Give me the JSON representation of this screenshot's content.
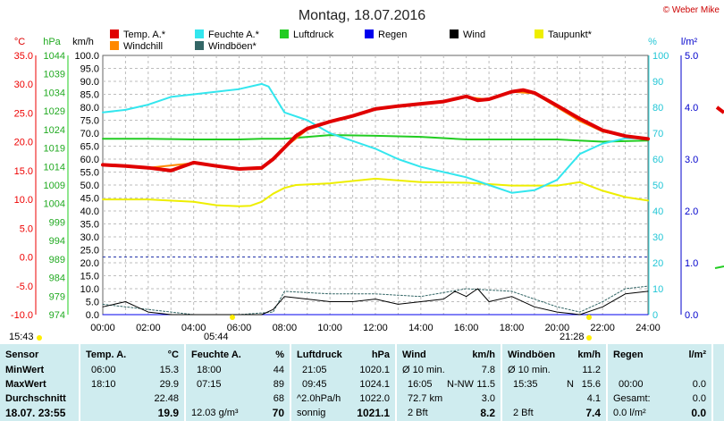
{
  "header": {
    "title": "Montag, 18.07.2016",
    "copyright": "© Weber Mike"
  },
  "axis_titles": {
    "temp": "°C",
    "press": "hPa",
    "wind": "km/h",
    "hum": "%",
    "rain": "l/m²"
  },
  "legend": [
    {
      "label": "Temp. A.*",
      "color": "#e00000"
    },
    {
      "label": "Feuchte A.*",
      "color": "#33e6ee"
    },
    {
      "label": "Luftdruck",
      "color": "#22cc22"
    },
    {
      "label": "Regen",
      "color": "#0000ee"
    },
    {
      "label": "Wind",
      "color": "#000000"
    },
    {
      "label": "Taupunkt*",
      "color": "#eeee00"
    },
    {
      "label": "Windchill",
      "color": "#ff8800"
    },
    {
      "label": "Windböen*",
      "color": "#336666"
    }
  ],
  "sun": {
    "rise": "05:44",
    "set": "21:28",
    "left_time": "15:43"
  },
  "chart_data": {
    "type": "line",
    "title": "Montag, 18.07.2016",
    "x_range": [
      "00:00",
      "24:00"
    ],
    "x_ticks": [
      "00:00",
      "02:00",
      "04:00",
      "06:00",
      "08:00",
      "10:00",
      "12:00",
      "14:00",
      "16:00",
      "18:00",
      "20:00",
      "22:00",
      "24:00"
    ],
    "axes": {
      "temp_c": {
        "range": [
          -10,
          35
        ],
        "ticks": [
          "35.0",
          "30.0",
          "25.0",
          "20.0",
          "15.0",
          "10.0",
          "5.0",
          "0.0",
          "-5.0",
          "-10.0"
        ],
        "color": "#ee0000"
      },
      "pressure_hpa": {
        "range": [
          974,
          1044
        ],
        "ticks": [
          "1044",
          "1039",
          "1034",
          "1029",
          "1024",
          "1019",
          "1014",
          "1009",
          "1004",
          "999",
          "994",
          "989",
          "984",
          "979",
          "974"
        ],
        "color": "#22aa22"
      },
      "wind_kmh": {
        "range": [
          0,
          100
        ],
        "ticks": [
          "100.0",
          "95.0",
          "90.0",
          "85.0",
          "80.0",
          "75.0",
          "70.0",
          "65.0",
          "60.0",
          "55.0",
          "50.0",
          "45.0",
          "40.0",
          "35.0",
          "30.0",
          "25.0",
          "20.0",
          "15.0",
          "10.0",
          "5.0",
          "0.0"
        ],
        "color": "#000000"
      },
      "humidity_pct": {
        "range": [
          0,
          100
        ],
        "ticks": [
          "100",
          "90",
          "80",
          "70",
          "60",
          "50",
          "40",
          "30",
          "20",
          "10",
          "0"
        ],
        "color": "#22c6d6"
      },
      "rain_lm2": {
        "range": [
          0,
          5
        ],
        "ticks": [
          "5.0",
          "4.0",
          "3.0",
          "2.0",
          "1.0",
          "0.0"
        ],
        "color": "#0000cc"
      }
    },
    "series": [
      {
        "name": "Temp. A.*",
        "axis": "temp_c",
        "color": "#e00000",
        "width": 4,
        "x": [
          0,
          1,
          2,
          3,
          4,
          5,
          6,
          7,
          7.5,
          8,
          8.5,
          9,
          10,
          11,
          12,
          13,
          14,
          15,
          16,
          16.5,
          17,
          18,
          18.5,
          19,
          20,
          21,
          22,
          23,
          24
        ],
        "y": [
          16.0,
          15.8,
          15.5,
          15.0,
          16.4,
          15.8,
          15.3,
          15.5,
          17.0,
          19.0,
          21.0,
          22.3,
          23.5,
          24.5,
          25.7,
          26.2,
          26.6,
          27.0,
          27.9,
          27.2,
          27.4,
          28.7,
          29.0,
          28.5,
          26.3,
          24.0,
          22.0,
          21.0,
          20.5
        ]
      },
      {
        "name": "Windchill",
        "axis": "temp_c",
        "color": "#ff8800",
        "width": 2,
        "x": [
          0,
          2,
          4,
          6,
          7,
          8,
          9,
          10,
          11,
          12,
          13,
          14,
          15,
          16,
          17,
          18,
          19,
          20,
          21,
          22,
          23,
          24
        ],
        "y": [
          16.0,
          15.5,
          16.3,
          15.2,
          15.3,
          19.0,
          22.1,
          23.4,
          24.4,
          25.6,
          26.1,
          26.5,
          27.0,
          27.8,
          27.3,
          28.7,
          28.4,
          26.0,
          23.6,
          21.8,
          21.0,
          20.4
        ]
      },
      {
        "name": "Feuchte A.*",
        "axis": "humidity_pct",
        "color": "#33e6ee",
        "width": 2,
        "x": [
          0,
          1,
          2,
          3,
          4,
          5,
          6,
          7,
          7.3,
          8,
          9,
          10,
          11,
          12,
          13,
          14,
          15,
          16,
          17,
          18,
          19,
          20,
          21,
          22,
          23,
          24
        ],
        "y": [
          78,
          79,
          81,
          84,
          85,
          86,
          87,
          89,
          88,
          78,
          75,
          70,
          67,
          64,
          60,
          57,
          55,
          53,
          50,
          47,
          48,
          52,
          62,
          66,
          68,
          68
        ]
      },
      {
        "name": "Luftdruck",
        "axis": "pressure_hpa",
        "color": "#22cc22",
        "width": 2,
        "x": [
          0,
          2,
          4,
          6,
          7,
          8,
          10,
          12,
          14,
          16,
          18,
          20,
          22,
          24
        ],
        "y": [
          1021.5,
          1021.5,
          1021.3,
          1021.3,
          1021.5,
          1021.5,
          1022.5,
          1022.3,
          1022.0,
          1021.3,
          1021.3,
          1021.3,
          1020.7,
          1021.0
        ]
      },
      {
        "name": "Taupunkt*",
        "axis": "temp_c",
        "color": "#eeee00",
        "width": 2,
        "x": [
          0,
          2,
          4,
          5,
          6,
          6.5,
          7,
          7.5,
          8,
          8.5,
          10,
          12,
          14,
          16,
          18,
          20,
          21,
          22,
          23,
          24
        ],
        "y": [
          10.0,
          10.0,
          9.6,
          9.0,
          8.8,
          8.9,
          9.6,
          11.0,
          12.0,
          12.5,
          12.8,
          13.6,
          13.0,
          12.9,
          12.4,
          12.4,
          13.0,
          11.5,
          10.4,
          9.8
        ]
      },
      {
        "name": "Wind",
        "axis": "wind_kmh",
        "color": "#000000",
        "width": 1,
        "x": [
          0,
          1,
          1.5,
          2,
          3,
          4,
          5,
          6,
          7,
          7.5,
          8,
          9,
          10,
          11,
          12,
          13,
          14,
          15,
          15.5,
          16,
          16.5,
          17,
          18,
          19,
          20,
          21,
          22,
          23,
          24
        ],
        "y": [
          3,
          5,
          3,
          1,
          0,
          0,
          0,
          0,
          0,
          2,
          7,
          6,
          5,
          5,
          6,
          4,
          5,
          6,
          9,
          7,
          10,
          5,
          7,
          3,
          1,
          0,
          3,
          8,
          9
        ]
      },
      {
        "name": "Windböen*",
        "axis": "wind_kmh",
        "color": "#336666",
        "width": 1,
        "dash": "2,2",
        "x": [
          0,
          2,
          4,
          6,
          7.5,
          8,
          10,
          12,
          14,
          16,
          18,
          20,
          21,
          22,
          23,
          24
        ],
        "y": [
          4,
          2,
          0,
          0,
          1,
          9,
          8,
          8,
          7,
          10,
          9,
          3,
          1,
          5,
          10,
          11
        ]
      },
      {
        "name": "Regen",
        "axis": "rain_lm2",
        "color": "#0000ee",
        "width": 1,
        "x": [
          0,
          24
        ],
        "y": [
          0,
          0
        ]
      }
    ],
    "reference_lines": [
      {
        "axis": "temp_c",
        "value": 0,
        "color": "#2233aa",
        "dash": "3,3"
      }
    ],
    "grid": true
  },
  "stats": {
    "sensor": {
      "header": "Sensor",
      "rows": [
        "MinWert",
        "MaxWert",
        "Durchschnitt"
      ],
      "footer": "18.07. 23:55"
    },
    "temp": {
      "header": "Temp. A.",
      "unit": "°C",
      "min_time": "06:00",
      "min": "15.3",
      "max_time": "18:10",
      "max": "29.9",
      "avg": "22.48",
      "current": "19.9"
    },
    "hum": {
      "header": "Feuchte A.",
      "unit": "%",
      "min_time": "18:00",
      "min": "44",
      "max_time": "07:15",
      "max": "89",
      "avg": "68",
      "abs": "12.03 g/m³",
      "current": "70"
    },
    "press": {
      "header": "Luftdruck",
      "unit": "hPa",
      "min_time": "21:05",
      "min": "1020.1",
      "max_time": "09:45",
      "max": "1024.1",
      "trend": "^2.0hPa/h",
      "avg": "1022.0",
      "weather": "sonnig",
      "current": "1021.1"
    },
    "wind": {
      "header": "Wind",
      "unit": "km/h",
      "r1_label": "Ø 10 min.",
      "r1_val": "7.8",
      "r2_time": "16:05",
      "r2_dir": "N-NW",
      "r2_val": "11.5",
      "r3_label": "72.7 km",
      "r3_val": "3.0",
      "bft": "2 Bft",
      "current": "8.2"
    },
    "gust": {
      "header": "Windböen",
      "unit": "km/h",
      "r1_label": "Ø 10 min.",
      "r1_val": "11.2",
      "r2_time": "15:35",
      "r2_dir": "N",
      "r2_val": "15.6",
      "r3_val": "4.1",
      "bft": "2 Bft",
      "current": "7.4"
    },
    "rain": {
      "header": "Regen",
      "unit": "l/m²",
      "r2_time": "00:00",
      "r2_val": "0.0",
      "r3_label": "Gesamt:",
      "r3_val": "0.0",
      "footer_label": "0.0 l/m²",
      "current": "0.0"
    }
  }
}
